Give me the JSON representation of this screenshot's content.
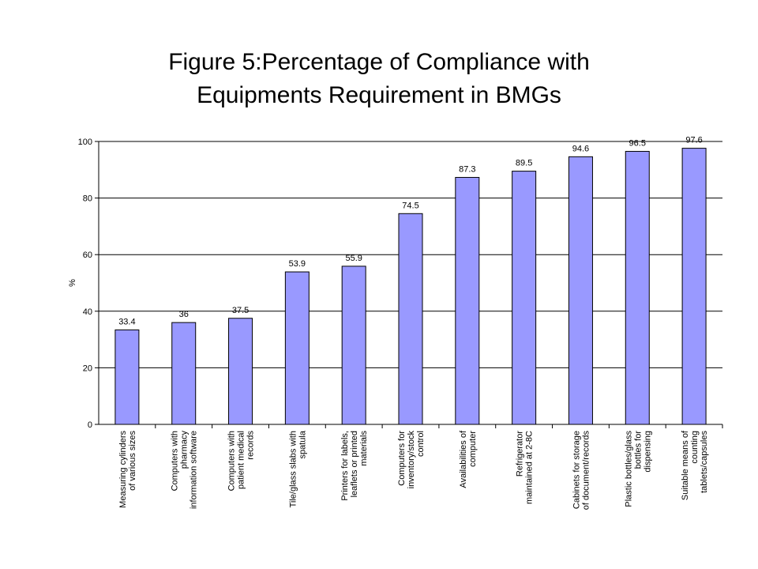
{
  "title_lines": [
    "Figure 5:Percentage of Compliance with",
    "Equipments Requirement in BMGs"
  ],
  "chart_data": {
    "type": "bar",
    "title": "Figure 5:Percentage of Compliance with Equipments Requirement in BMGs",
    "xlabel": "",
    "ylabel": "%",
    "ylim": [
      0,
      100
    ],
    "yticks": [
      0,
      20,
      40,
      60,
      80,
      100
    ],
    "grid": true,
    "legend": "none",
    "bar_color": "#9999ff",
    "bar_edge_color": "#000000",
    "categories": [
      [
        "Measuring cylinders",
        "of various sizes"
      ],
      [
        "Computers with",
        "pharmacy",
        "information software"
      ],
      [
        "Computers with",
        "patient medical",
        "records"
      ],
      [
        "Tile/glass slabs with",
        "spatula"
      ],
      [
        "Printers for labels,",
        "leaflets or printed",
        "materials"
      ],
      [
        "Computers for",
        "inventory/stock",
        "control"
      ],
      [
        "Availabilities of",
        "computer"
      ],
      [
        "Refrigerator",
        "maintained at 2-8C"
      ],
      [
        "Cabinets for storage",
        "of document/records"
      ],
      [
        "Plastic bottles/glass",
        "bottles for",
        "dispensing"
      ],
      [
        "Suitable means of",
        "counting",
        "tablets/capsules"
      ]
    ],
    "values": [
      33.4,
      36,
      37.5,
      53.9,
      55.9,
      74.5,
      87.3,
      89.5,
      94.6,
      96.5,
      97.6
    ],
    "data_labels": [
      "33.4",
      "36",
      "37.5",
      "53.9",
      "55.9",
      "74.5",
      "87.3",
      "89.5",
      "94.6",
      "96.5",
      "97.6"
    ]
  }
}
